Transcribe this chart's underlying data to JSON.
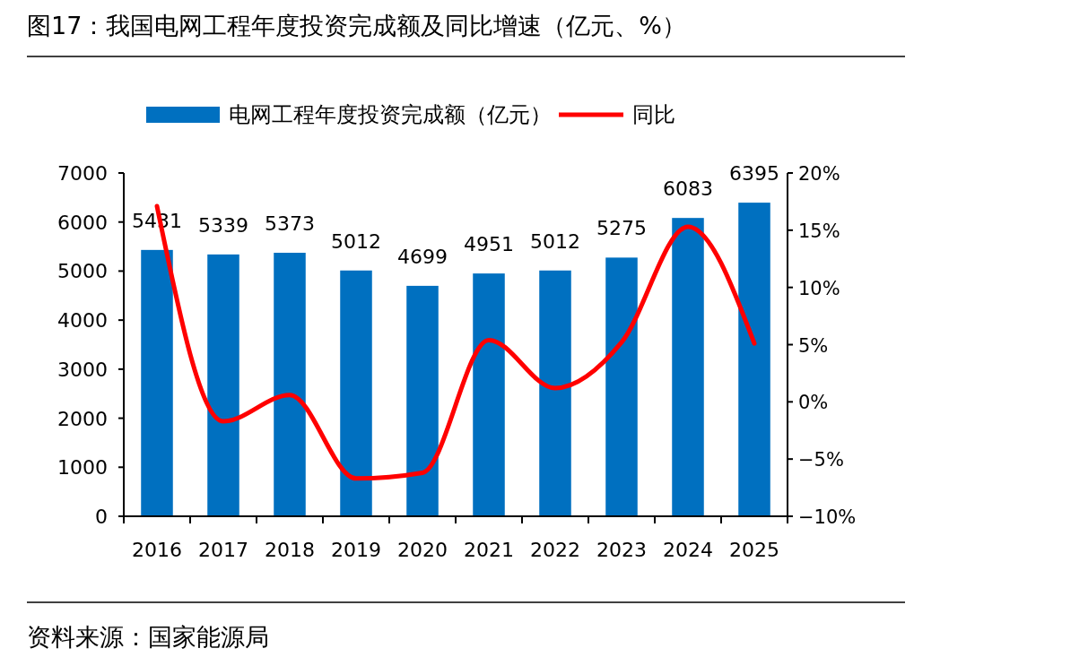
{
  "chart_data": {
    "type": "bar",
    "title": "图17：我国电网工程年度投资完成额及同比增速（亿元、%）",
    "categories": [
      "2016",
      "2017",
      "2018",
      "2019",
      "2020",
      "2021",
      "2022",
      "2023",
      "2024",
      "2025"
    ],
    "series": [
      {
        "name": "电网工程年度投资完成额（亿元）",
        "color": "#0070c0",
        "values": [
          5431,
          5339,
          5373,
          5012,
          4699,
          4951,
          5012,
          5275,
          6083,
          6395
        ],
        "value_labels": [
          "5431",
          "5339",
          "5373",
          "5012",
          "4699",
          "4951",
          "5012",
          "5275",
          "6083",
          "6395"
        ]
      },
      {
        "name": "同比",
        "type": "line",
        "axis": "y2",
        "color": "#ff0000",
        "values": [
          17.1,
          -1.7,
          0.6,
          -6.7,
          -6.2,
          5.4,
          1.2,
          5.2,
          15.3,
          5.1
        ]
      }
    ],
    "ylim": [
      0,
      7000
    ],
    "yticks": [
      0,
      1000,
      2000,
      3000,
      4000,
      5000,
      6000,
      7000
    ],
    "y2lim": [
      -10,
      20
    ],
    "y2ticks": [
      {
        "value": -10,
        "label": "−10%"
      },
      {
        "value": -5,
        "label": "−5%"
      },
      {
        "value": 0,
        "label": "0%"
      },
      {
        "value": 5,
        "label": "5%"
      },
      {
        "value": 10,
        "label": "10%"
      },
      {
        "value": 15,
        "label": "15%"
      },
      {
        "value": 20,
        "label": "20%"
      }
    ],
    "legend": "top",
    "grid": false,
    "marker": "none",
    "annotations": [
      "资料来源：国家能源局"
    ]
  }
}
